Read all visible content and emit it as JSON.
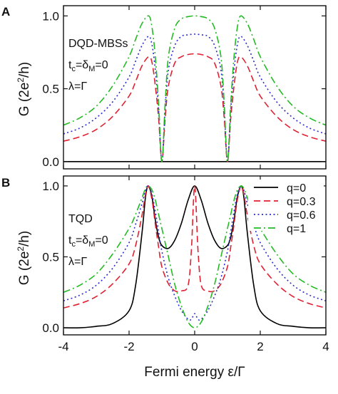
{
  "chart_data": [
    {
      "panel": "A",
      "type": "line",
      "ylabel": "G (2e²/h)",
      "xlim": [
        -4,
        4
      ],
      "ylim": [
        -0.05,
        1.07
      ],
      "yticks": [
        "0.0",
        "0.5",
        "1.0"
      ],
      "annotations": [
        "DQD-MBSs",
        "t_c=δ_M=0",
        "λ=Γ"
      ],
      "series": [
        {
          "name": "q=0",
          "color": "#000000",
          "dash": "solid",
          "x": [
            -4,
            4
          ],
          "y": [
            0.0,
            0.0
          ]
        },
        {
          "name": "q=0.3",
          "color": "#e02030",
          "dash": "dash",
          "x": [
            -4,
            -3.5,
            -3,
            -2.5,
            -2,
            -1.8,
            -1.6,
            -1.4,
            -1.3,
            -1.2,
            -1.1,
            -1,
            -0.9,
            -0.8,
            -0.6,
            -0.4,
            -0.2,
            0,
            0.2,
            0.4,
            0.6,
            0.8,
            0.9,
            1,
            1.1,
            1.2,
            1.3,
            1.4,
            1.6,
            1.8,
            2,
            2.5,
            3,
            3.5,
            4
          ],
          "y": [
            0.14,
            0.17,
            0.22,
            0.31,
            0.45,
            0.55,
            0.66,
            0.72,
            0.68,
            0.52,
            0.3,
            0.0,
            0.3,
            0.52,
            0.68,
            0.72,
            0.735,
            0.74,
            0.735,
            0.72,
            0.68,
            0.52,
            0.3,
            0.0,
            0.3,
            0.52,
            0.68,
            0.72,
            0.66,
            0.55,
            0.45,
            0.31,
            0.22,
            0.17,
            0.14
          ]
        },
        {
          "name": "q=0.6",
          "color": "#2a2ad0",
          "dash": "dot",
          "x": [
            -4,
            -3.5,
            -3,
            -2.5,
            -2,
            -1.8,
            -1.6,
            -1.4,
            -1.3,
            -1.2,
            -1.1,
            -1,
            -0.9,
            -0.8,
            -0.6,
            -0.4,
            -0.2,
            0,
            0.2,
            0.4,
            0.6,
            0.8,
            0.9,
            1,
            1.1,
            1.2,
            1.3,
            1.4,
            1.6,
            1.8,
            2,
            2.5,
            3,
            3.5,
            4
          ],
          "y": [
            0.19,
            0.23,
            0.3,
            0.41,
            0.58,
            0.69,
            0.8,
            0.86,
            0.8,
            0.63,
            0.36,
            0.0,
            0.36,
            0.63,
            0.8,
            0.86,
            0.87,
            0.875,
            0.87,
            0.86,
            0.8,
            0.63,
            0.36,
            0.0,
            0.36,
            0.63,
            0.8,
            0.86,
            0.8,
            0.69,
            0.58,
            0.41,
            0.3,
            0.23,
            0.19
          ]
        },
        {
          "name": "q=1",
          "color": "#22bb22",
          "dash": "dashdot",
          "x": [
            -4,
            -3.5,
            -3,
            -2.5,
            -2,
            -1.8,
            -1.6,
            -1.4,
            -1.3,
            -1.2,
            -1.1,
            -1,
            -0.9,
            -0.8,
            -0.6,
            -0.4,
            -0.2,
            0,
            0.2,
            0.4,
            0.6,
            0.8,
            0.9,
            1,
            1.1,
            1.2,
            1.3,
            1.4,
            1.6,
            1.8,
            2,
            2.5,
            3,
            3.5,
            4
          ],
          "y": [
            0.25,
            0.3,
            0.38,
            0.52,
            0.72,
            0.84,
            0.95,
            1.0,
            0.92,
            0.72,
            0.4,
            0.0,
            0.4,
            0.72,
            0.92,
            0.98,
            0.995,
            1.0,
            0.995,
            0.98,
            0.92,
            0.72,
            0.4,
            0.0,
            0.4,
            0.72,
            0.92,
            1.0,
            0.95,
            0.84,
            0.72,
            0.52,
            0.38,
            0.3,
            0.25
          ]
        }
      ]
    },
    {
      "panel": "B",
      "type": "line",
      "ylabel": "G (2e²/h)",
      "xlabel": "Fermi energy ε/Γ",
      "xlim": [
        -4,
        4
      ],
      "ylim": [
        -0.05,
        1.07
      ],
      "yticks": [
        "0.0",
        "0.5",
        "1.0"
      ],
      "xticks": [
        "-4",
        "-2",
        "0",
        "2",
        "4"
      ],
      "annotations": [
        "TQD",
        "t_c=δ_M=0",
        "λ=Γ"
      ],
      "legend": {
        "position": "top-right",
        "entries": [
          "q=0",
          "q=0.3",
          "q=0.6",
          "q=1"
        ]
      },
      "series": [
        {
          "name": "q=0",
          "color": "#000000",
          "dash": "solid",
          "x": [
            -4,
            -3.5,
            -3,
            -2.5,
            -2,
            -1.8,
            -1.6,
            -1.5,
            -1.414,
            -1.3,
            -1.2,
            -1.1,
            -1,
            -0.8,
            -0.6,
            -0.4,
            -0.2,
            0,
            0.2,
            0.4,
            0.6,
            0.8,
            1,
            1.1,
            1.2,
            1.3,
            1.414,
            1.5,
            1.6,
            1.8,
            2,
            2.5,
            3,
            3.5,
            4
          ],
          "y": [
            0.0,
            0.0,
            0.01,
            0.03,
            0.12,
            0.3,
            0.68,
            0.92,
            1.0,
            0.92,
            0.76,
            0.64,
            0.58,
            0.56,
            0.62,
            0.74,
            0.9,
            1.0,
            0.9,
            0.74,
            0.62,
            0.56,
            0.58,
            0.64,
            0.76,
            0.92,
            1.0,
            0.92,
            0.68,
            0.3,
            0.12,
            0.03,
            0.01,
            0.0,
            0.0
          ]
        },
        {
          "name": "q=0.3",
          "color": "#e02030",
          "dash": "dash",
          "x": [
            -4,
            -3.5,
            -3,
            -2.5,
            -2,
            -1.8,
            -1.6,
            -1.5,
            -1.414,
            -1.3,
            -1.2,
            -1.1,
            -1,
            -0.8,
            -0.6,
            -0.4,
            -0.2,
            -0.1,
            0,
            0.1,
            0.2,
            0.4,
            0.6,
            0.8,
            1,
            1.1,
            1.2,
            1.3,
            1.414,
            1.5,
            1.6,
            1.8,
            2,
            2.5,
            3,
            3.5,
            4
          ],
          "y": [
            0.14,
            0.17,
            0.22,
            0.31,
            0.45,
            0.58,
            0.8,
            0.94,
            1.0,
            0.9,
            0.73,
            0.57,
            0.43,
            0.31,
            0.26,
            0.26,
            0.3,
            0.55,
            1.0,
            0.55,
            0.3,
            0.26,
            0.26,
            0.31,
            0.43,
            0.57,
            0.73,
            0.9,
            1.0,
            0.94,
            0.8,
            0.58,
            0.45,
            0.31,
            0.22,
            0.17,
            0.14
          ]
        },
        {
          "name": "q=0.6",
          "color": "#2a2ad0",
          "dash": "dot",
          "x": [
            -4,
            -3.5,
            -3,
            -2.5,
            -2,
            -1.8,
            -1.6,
            -1.5,
            -1.414,
            -1.3,
            -1.2,
            -1.1,
            -1,
            -0.8,
            -0.6,
            -0.4,
            -0.2,
            -0.1,
            0,
            0.1,
            0.2,
            0.4,
            0.6,
            0.8,
            1,
            1.1,
            1.2,
            1.3,
            1.414,
            1.5,
            1.6,
            1.8,
            2,
            2.5,
            3,
            3.5,
            4
          ],
          "y": [
            0.19,
            0.23,
            0.3,
            0.42,
            0.6,
            0.73,
            0.88,
            0.97,
            1.0,
            0.94,
            0.82,
            0.68,
            0.54,
            0.35,
            0.22,
            0.12,
            0.06,
            0.06,
            0.1,
            0.06,
            0.06,
            0.12,
            0.22,
            0.35,
            0.54,
            0.68,
            0.82,
            0.94,
            1.0,
            0.97,
            0.88,
            0.73,
            0.6,
            0.42,
            0.3,
            0.23,
            0.19
          ]
        },
        {
          "name": "q=1",
          "color": "#22bb22",
          "dash": "dashdot",
          "x": [
            -4,
            -3.5,
            -3,
            -2.5,
            -2,
            -1.8,
            -1.6,
            -1.5,
            -1.414,
            -1.3,
            -1.2,
            -1.1,
            -1,
            -0.8,
            -0.6,
            -0.4,
            -0.2,
            0,
            0.2,
            0.4,
            0.6,
            0.8,
            1,
            1.1,
            1.2,
            1.3,
            1.414,
            1.5,
            1.6,
            1.8,
            2,
            2.5,
            3,
            3.5,
            4
          ],
          "y": [
            0.25,
            0.3,
            0.38,
            0.52,
            0.7,
            0.8,
            0.92,
            0.98,
            1.0,
            0.97,
            0.9,
            0.8,
            0.7,
            0.5,
            0.3,
            0.15,
            0.04,
            0.0,
            0.04,
            0.15,
            0.3,
            0.5,
            0.7,
            0.8,
            0.9,
            0.97,
            1.0,
            0.98,
            0.92,
            0.8,
            0.7,
            0.52,
            0.38,
            0.3,
            0.25
          ]
        }
      ]
    }
  ]
}
